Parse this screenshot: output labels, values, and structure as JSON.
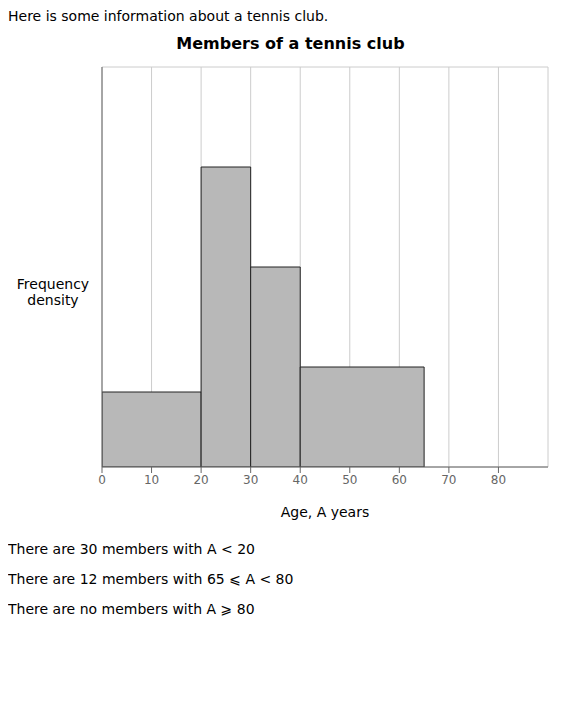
{
  "chart_data": {
    "type": "histogram",
    "title": "Members of a tennis club",
    "subtitle": "Here is some information about a tennis club.",
    "x_label": "Age, A years",
    "y_label": "Frequency\ndensity",
    "bins": [
      0,
      20,
      30,
      40,
      65
    ],
    "values": [
      1.5,
      6.0,
      4.0,
      2.0
    ],
    "color": "#b8b8b8",
    "xlim": [
      0,
      90
    ],
    "ylim": [
      0,
      8
    ],
    "xticks": [
      0,
      10,
      20,
      30,
      40,
      50,
      60,
      70,
      80
    ],
    "yticks": [
      0,
      1,
      2,
      3,
      4,
      5,
      6,
      7,
      8
    ],
    "grid": true,
    "tick_labels": "x",
    "annotations": [
      "There are 30 members with A < 20",
      "There are 12 members with 65 ⩽ A < 80",
      "There are no members with A ⩾ 80"
    ]
  }
}
